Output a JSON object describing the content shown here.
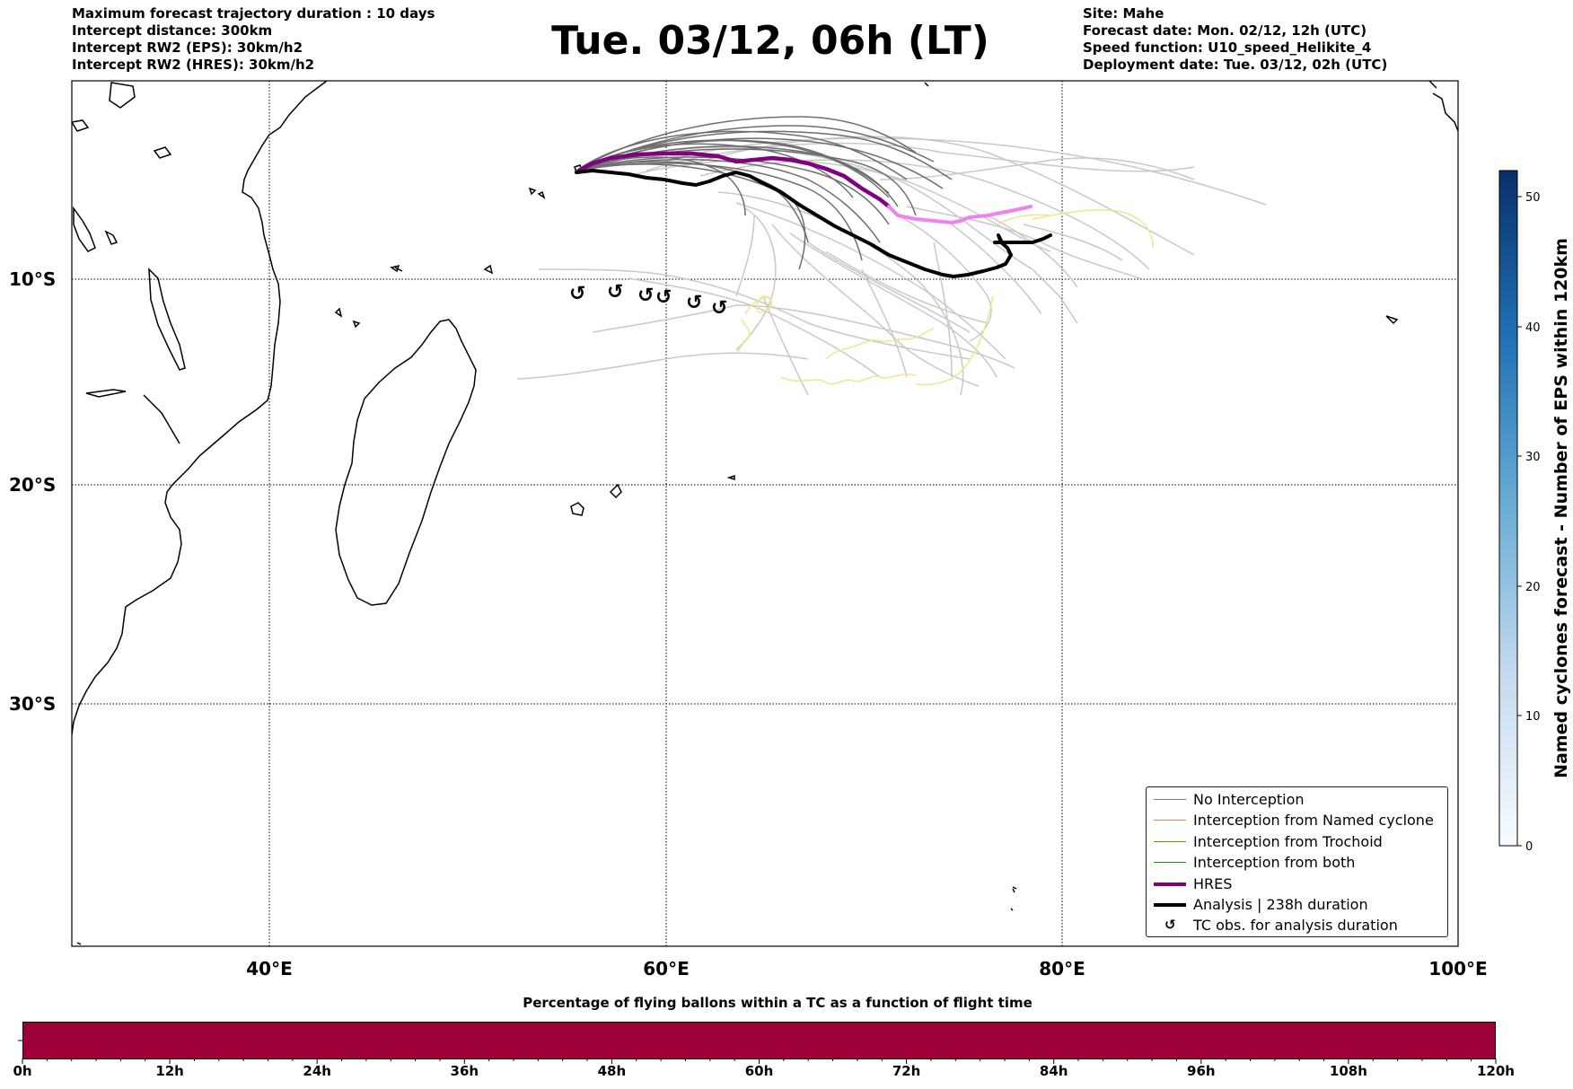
{
  "header_left": [
    "Maximum forecast trajectory duration : 10 days",
    "Intercept distance: 300km",
    "Intercept RW2 (EPS):  30km/h2",
    "Intercept RW2 (HRES): 30km/h2"
  ],
  "title": "Tue. 03/12, 06h (LT)",
  "header_right": [
    "Site: Mahe",
    "Forecast date: Mon. 02/12, 12h (UTC)",
    "Speed function: U10_speed_Helikite_4",
    "Deployment date: Tue. 03/12, 02h (UTC)"
  ],
  "map": {
    "lat_labels": [
      "10°S",
      "20°S",
      "30°S"
    ],
    "lon_labels": [
      "40°E",
      "60°E",
      "80°E",
      "100°E"
    ],
    "colors": {
      "eps_track": "#6e6e6e",
      "eps_track_light": "#c8c8c8",
      "hres": "#800080",
      "hres_late": "#ee82ee",
      "analysis": "#000000",
      "tc_track": "#f0e68c",
      "coast": "#000000"
    },
    "tc_obs_symbol": "↺"
  },
  "legend": {
    "items": [
      {
        "label": "No Interception",
        "color": "#7f7f7f",
        "kind": "thin"
      },
      {
        "label": "Interception from Named cyclone",
        "color": "#ff7f50",
        "kind": "thin"
      },
      {
        "label": "Interception from Trochoid",
        "color": "#808000",
        "kind": "thin"
      },
      {
        "label": "Interception from both",
        "color": "#228b22",
        "kind": "thin"
      },
      {
        "label": "HRES",
        "color": "#800080",
        "kind": "thick"
      },
      {
        "label": "Analysis | 238h duration",
        "color": "#000000",
        "kind": "thick"
      },
      {
        "label": "TC obs. for analysis duration",
        "color": "#000000",
        "kind": "glyph"
      }
    ]
  },
  "colorbar_right": {
    "title": "Named cyclones forecast - Number of EPS within 120km",
    "ticks": [
      "0",
      "10",
      "20",
      "30",
      "40",
      "50"
    ],
    "range": [
      0,
      52
    ],
    "colors": [
      "#f7fbff",
      "#c6dbef",
      "#6baed6",
      "#2171b5",
      "#08306b"
    ]
  },
  "colorbar_bottom": {
    "title": "Percentage of flying ballons within a TC as a function of flight time",
    "ticks": [
      "0h",
      "12h",
      "24h",
      "36h",
      "48h",
      "60h",
      "72h",
      "84h",
      "96h",
      "108h",
      "120h"
    ],
    "bar_color": "#9e003a"
  }
}
